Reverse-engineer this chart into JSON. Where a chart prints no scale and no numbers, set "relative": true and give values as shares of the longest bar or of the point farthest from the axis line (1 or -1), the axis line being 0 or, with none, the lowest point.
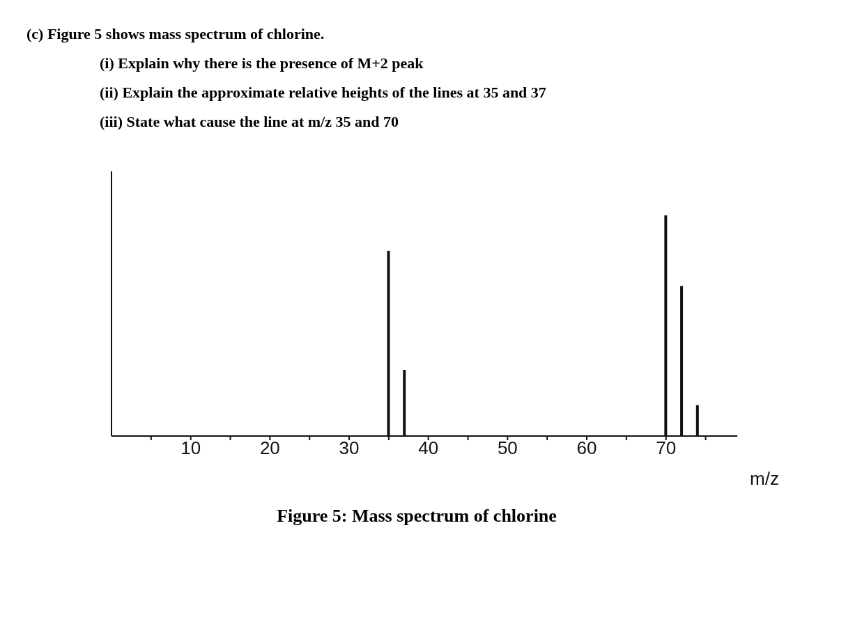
{
  "chart_data": {
    "type": "bar",
    "title": "Figure 5: Mass spectrum of chlorine",
    "annotations": [
      "(c) Figure 5 shows mass spectrum of chlorine.",
      "(i) Explain why there is the presence of M+2 peak",
      "(ii) Explain the approximate relative heights of the lines at 35 and 37",
      "(iii) State what cause the line at m/z 35 and 70"
    ],
    "x": [
      35,
      37,
      70,
      72,
      74
    ],
    "values": [
      0.84,
      0.3,
      1,
      0.68,
      0.14
    ],
    "relative": true,
    "color": "#111111",
    "xlabel": "m/z",
    "xlim": [
      0,
      79
    ],
    "xticks": [
      {
        "value": 5,
        "label": null
      },
      10,
      {
        "value": 15,
        "label": null
      },
      20,
      {
        "value": 25,
        "label": null
      },
      30,
      {
        "value": 35,
        "label": null
      },
      40,
      {
        "value": 45,
        "label": null
      },
      50,
      {
        "value": 55,
        "label": null
      },
      60,
      {
        "value": 65,
        "label": null
      },
      70,
      {
        "value": 75,
        "label": null
      }
    ],
    "tick_labels": "x",
    "grid": false,
    "legend": false
  }
}
